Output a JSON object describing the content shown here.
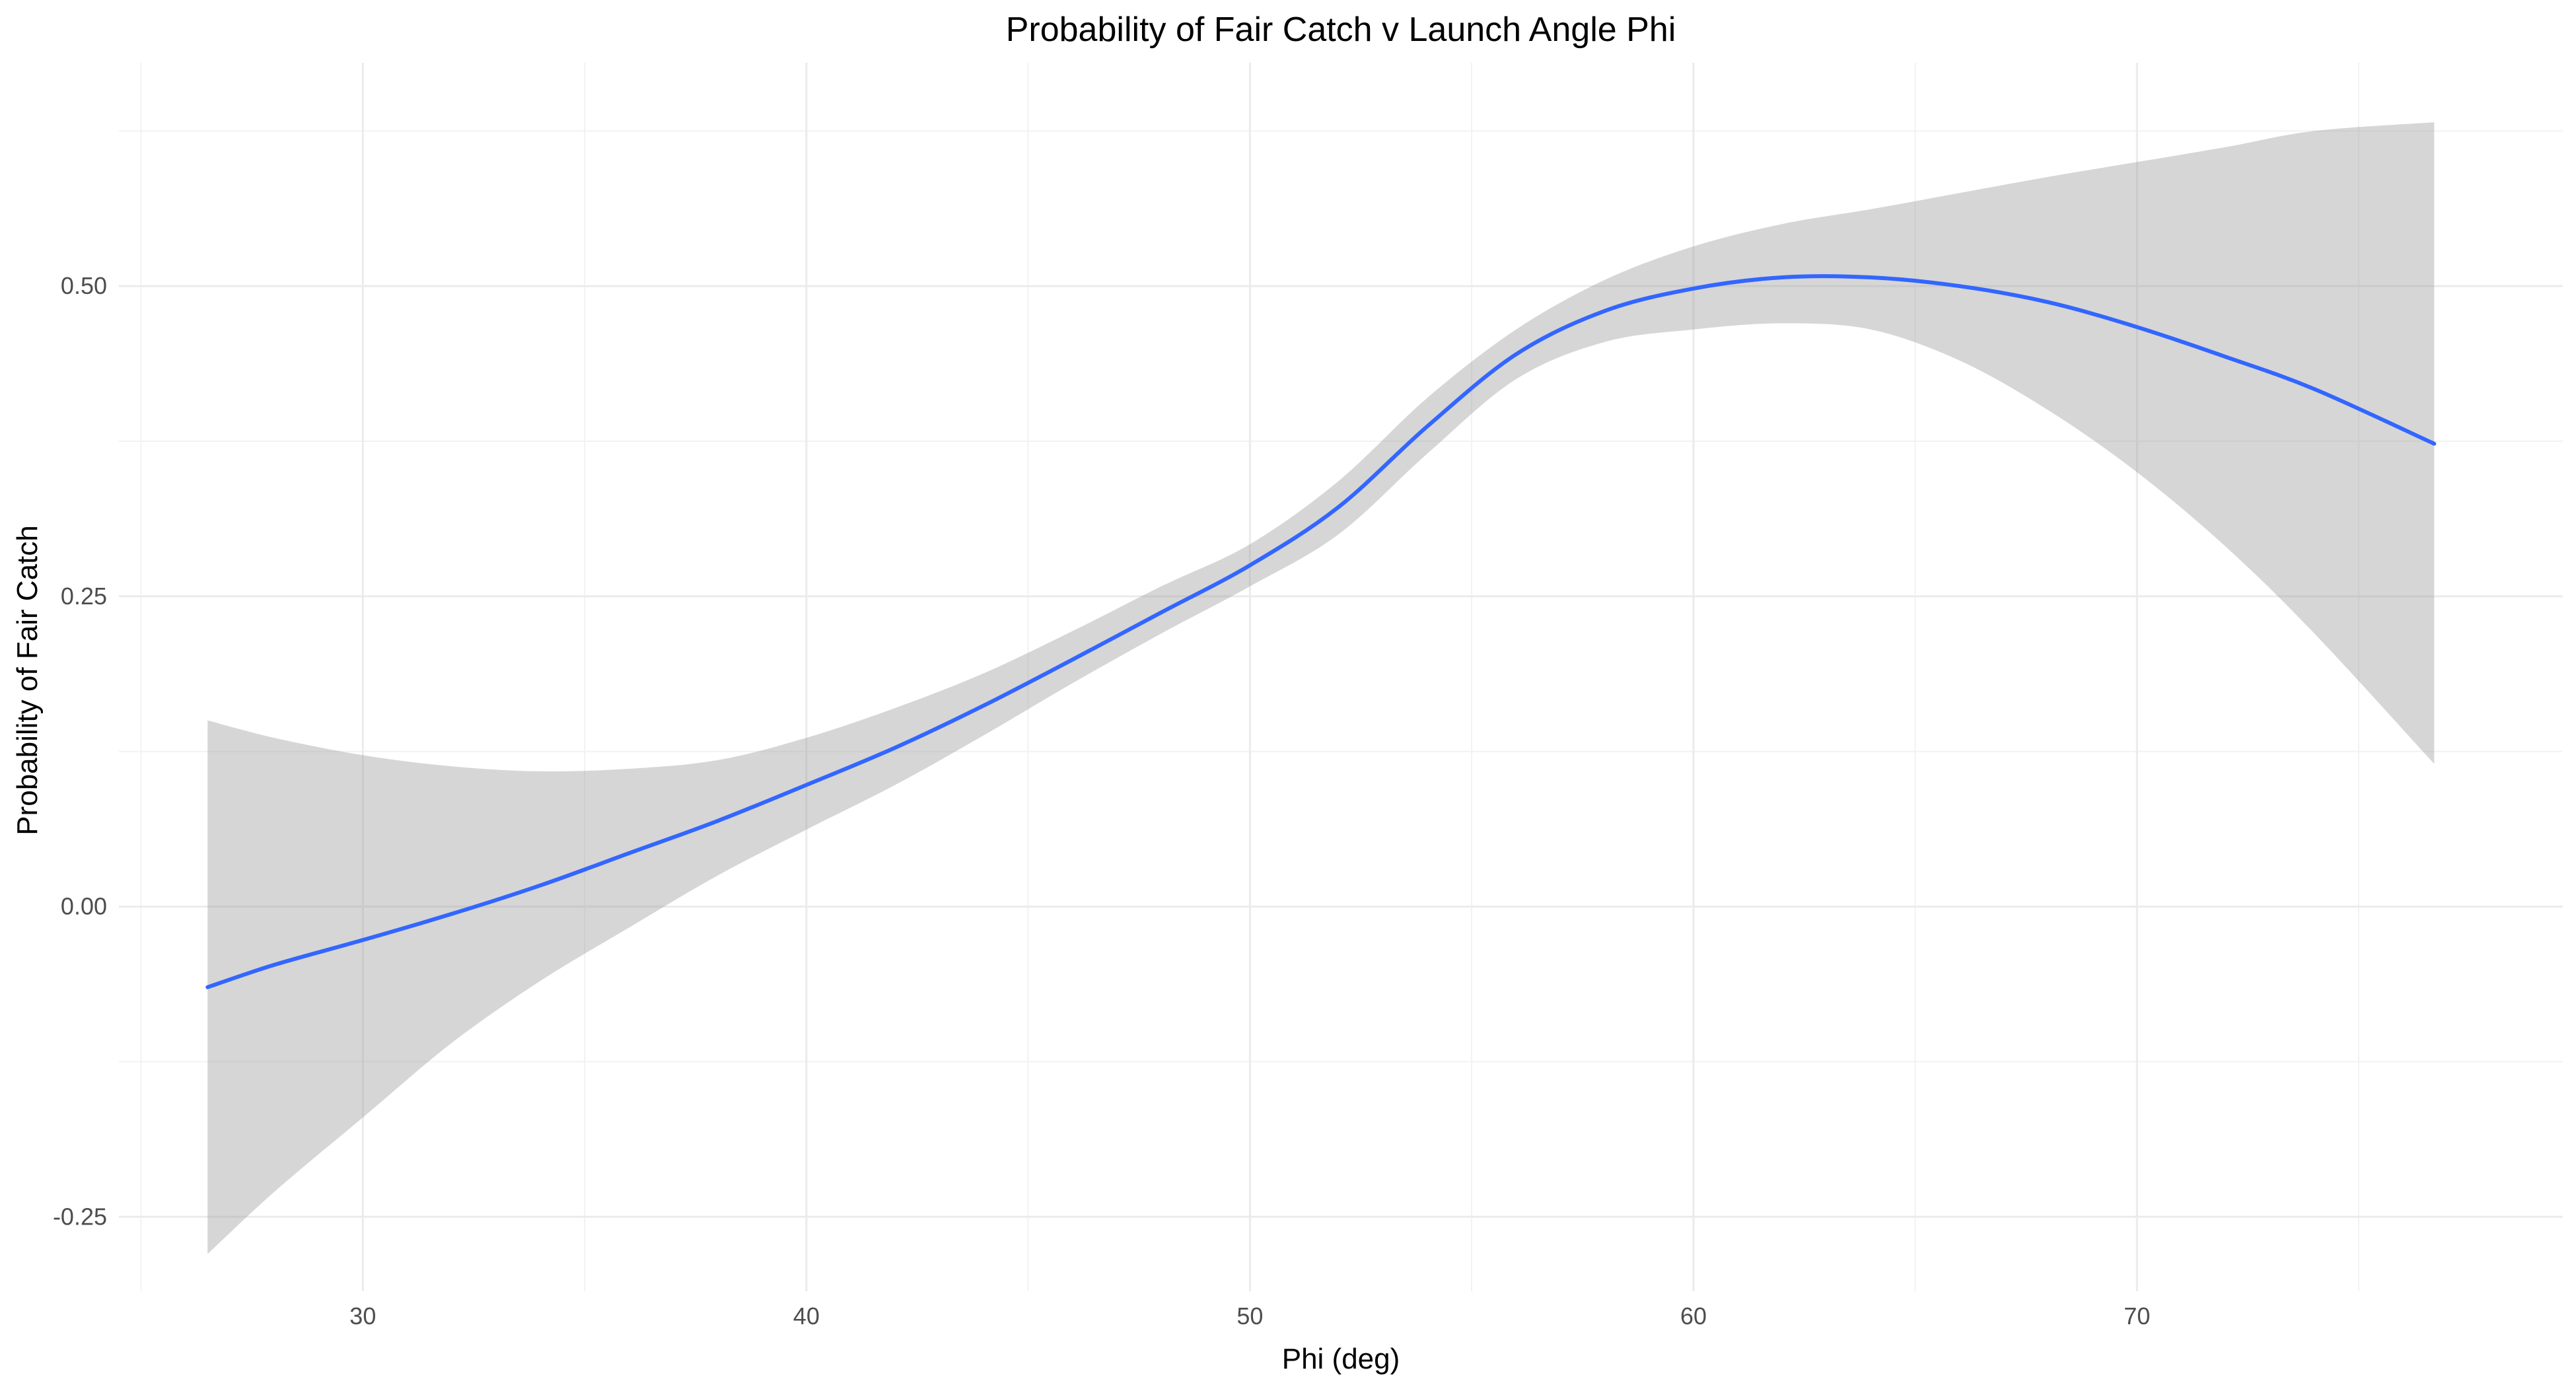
{
  "chart_data": {
    "type": "line",
    "title": "Probability of Fair Catch v Launch Angle Phi",
    "xlabel": "Phi (deg)",
    "ylabel": "Probability of Fair Catch",
    "xlim": [
      24.5,
      79.6
    ],
    "ylim": [
      -0.31,
      0.68
    ],
    "x_ticks": [
      30,
      40,
      50,
      60,
      70
    ],
    "x_tick_labels": [
      "30",
      "40",
      "50",
      "60",
      "70"
    ],
    "y_ticks": [
      -0.25,
      0.0,
      0.25,
      0.5
    ],
    "y_tick_labels": [
      "-0.25",
      "0.00",
      "0.25",
      "0.50"
    ],
    "grid": true,
    "legend": "none",
    "colors": {
      "line": "#3366ff",
      "ribbon": "#999999"
    },
    "series": [
      {
        "x": [
          26.5,
          28,
          30,
          32,
          34,
          36,
          38,
          40,
          42,
          44,
          46,
          48,
          50,
          52,
          54,
          56,
          58,
          60,
          62,
          64,
          66,
          68,
          70,
          72,
          74,
          76.7
        ],
        "y": [
          -0.065,
          -0.047,
          -0.027,
          -0.006,
          0.017,
          0.043,
          0.069,
          0.098,
          0.128,
          0.162,
          0.199,
          0.237,
          0.275,
          0.322,
          0.387,
          0.445,
          0.48,
          0.498,
          0.507,
          0.507,
          0.5,
          0.487,
          0.467,
          0.443,
          0.417,
          0.373
        ],
        "ymin": [
          -0.28,
          -0.23,
          -0.17,
          -0.11,
          -0.06,
          -0.017,
          0.025,
          0.062,
          0.098,
          0.138,
          0.18,
          0.22,
          0.258,
          0.3,
          0.365,
          0.425,
          0.455,
          0.465,
          0.47,
          0.465,
          0.44,
          0.4,
          0.35,
          0.29,
          0.22,
          0.115
        ],
        "ymax": [
          0.15,
          0.136,
          0.122,
          0.113,
          0.109,
          0.111,
          0.118,
          0.136,
          0.16,
          0.188,
          0.222,
          0.258,
          0.292,
          0.343,
          0.41,
          0.465,
          0.505,
          0.532,
          0.55,
          0.562,
          0.575,
          0.588,
          0.6,
          0.612,
          0.625,
          0.632
        ]
      }
    ]
  }
}
